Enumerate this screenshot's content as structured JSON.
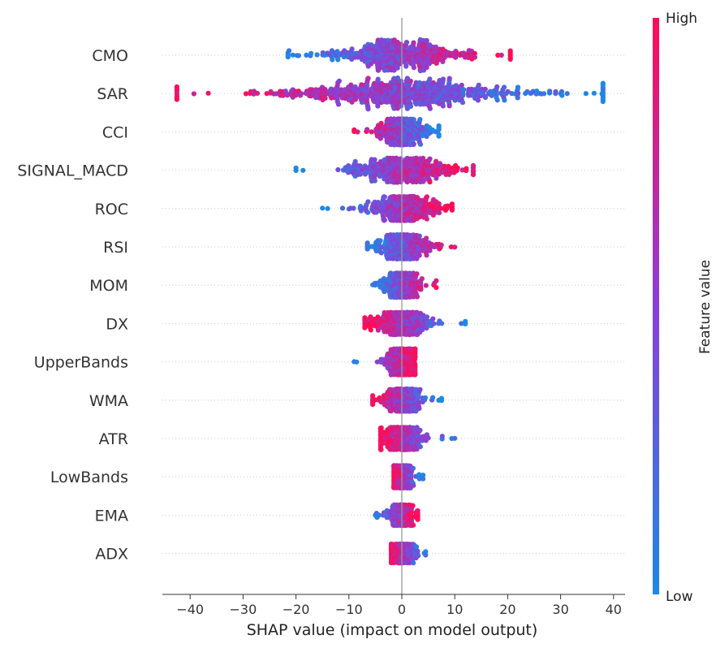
{
  "chart_data": {
    "type": "scatter",
    "subtype": "shap-beeswarm",
    "title": "",
    "xlabel": "SHAP value (impact on model output)",
    "ylabel": "",
    "xlim": [
      -46,
      41
    ],
    "xticks": [
      -40,
      -30,
      -20,
      -10,
      0,
      10,
      20,
      30,
      40
    ],
    "xtick_labels": [
      "−40",
      "−30",
      "−20",
      "−10",
      "0",
      "10",
      "20",
      "30",
      "40"
    ],
    "grid": false,
    "colors": {
      "low": "#1e88e5",
      "high": "#ff0d57",
      "mid": "#8b3fd6",
      "zero_line": "#999999",
      "row_line": "#cccccc"
    },
    "colorbar": {
      "label": "Feature value",
      "high_label": "High",
      "low_label": "Low"
    },
    "features": [
      {
        "name": "CMO",
        "min": -21.5,
        "max": 20.5,
        "width": 8.5,
        "color_trend": 1
      },
      {
        "name": "SAR",
        "min": -42.5,
        "max": 38,
        "width": 8.5,
        "color_trend": -1
      },
      {
        "name": "CCI",
        "min": -9,
        "max": 7,
        "width": 7,
        "color_trend": -1
      },
      {
        "name": "SIGNAL_MACD",
        "min": -20,
        "max": 13.5,
        "width": 6.5,
        "color_trend": 1
      },
      {
        "name": "ROC",
        "min": -15,
        "max": 9.5,
        "width": 6.5,
        "color_trend": 1
      },
      {
        "name": "RSI",
        "min": -6.5,
        "max": 10,
        "width": 6.5,
        "color_trend": 1
      },
      {
        "name": "MOM",
        "min": -5.5,
        "max": 6.5,
        "width": 6.5,
        "color_trend": 1
      },
      {
        "name": "DX",
        "min": -7,
        "max": 12,
        "width": 6,
        "color_trend": -1
      },
      {
        "name": "UpperBands",
        "min": -9,
        "max": 2.5,
        "width": 7,
        "color_trend": 1
      },
      {
        "name": "WMA",
        "min": -5.5,
        "max": 7.5,
        "width": 6,
        "color_trend": -1
      },
      {
        "name": "ATR",
        "min": -4,
        "max": 10,
        "width": 6,
        "color_trend": -1
      },
      {
        "name": "LowBands",
        "min": -1.5,
        "max": 4,
        "width": 6,
        "color_trend": -1
      },
      {
        "name": "EMA",
        "min": -5,
        "max": 3,
        "width": 5.5,
        "color_trend": 1
      },
      {
        "name": "ADX",
        "min": -2,
        "max": 4.5,
        "width": 5,
        "color_trend": -1
      }
    ]
  }
}
